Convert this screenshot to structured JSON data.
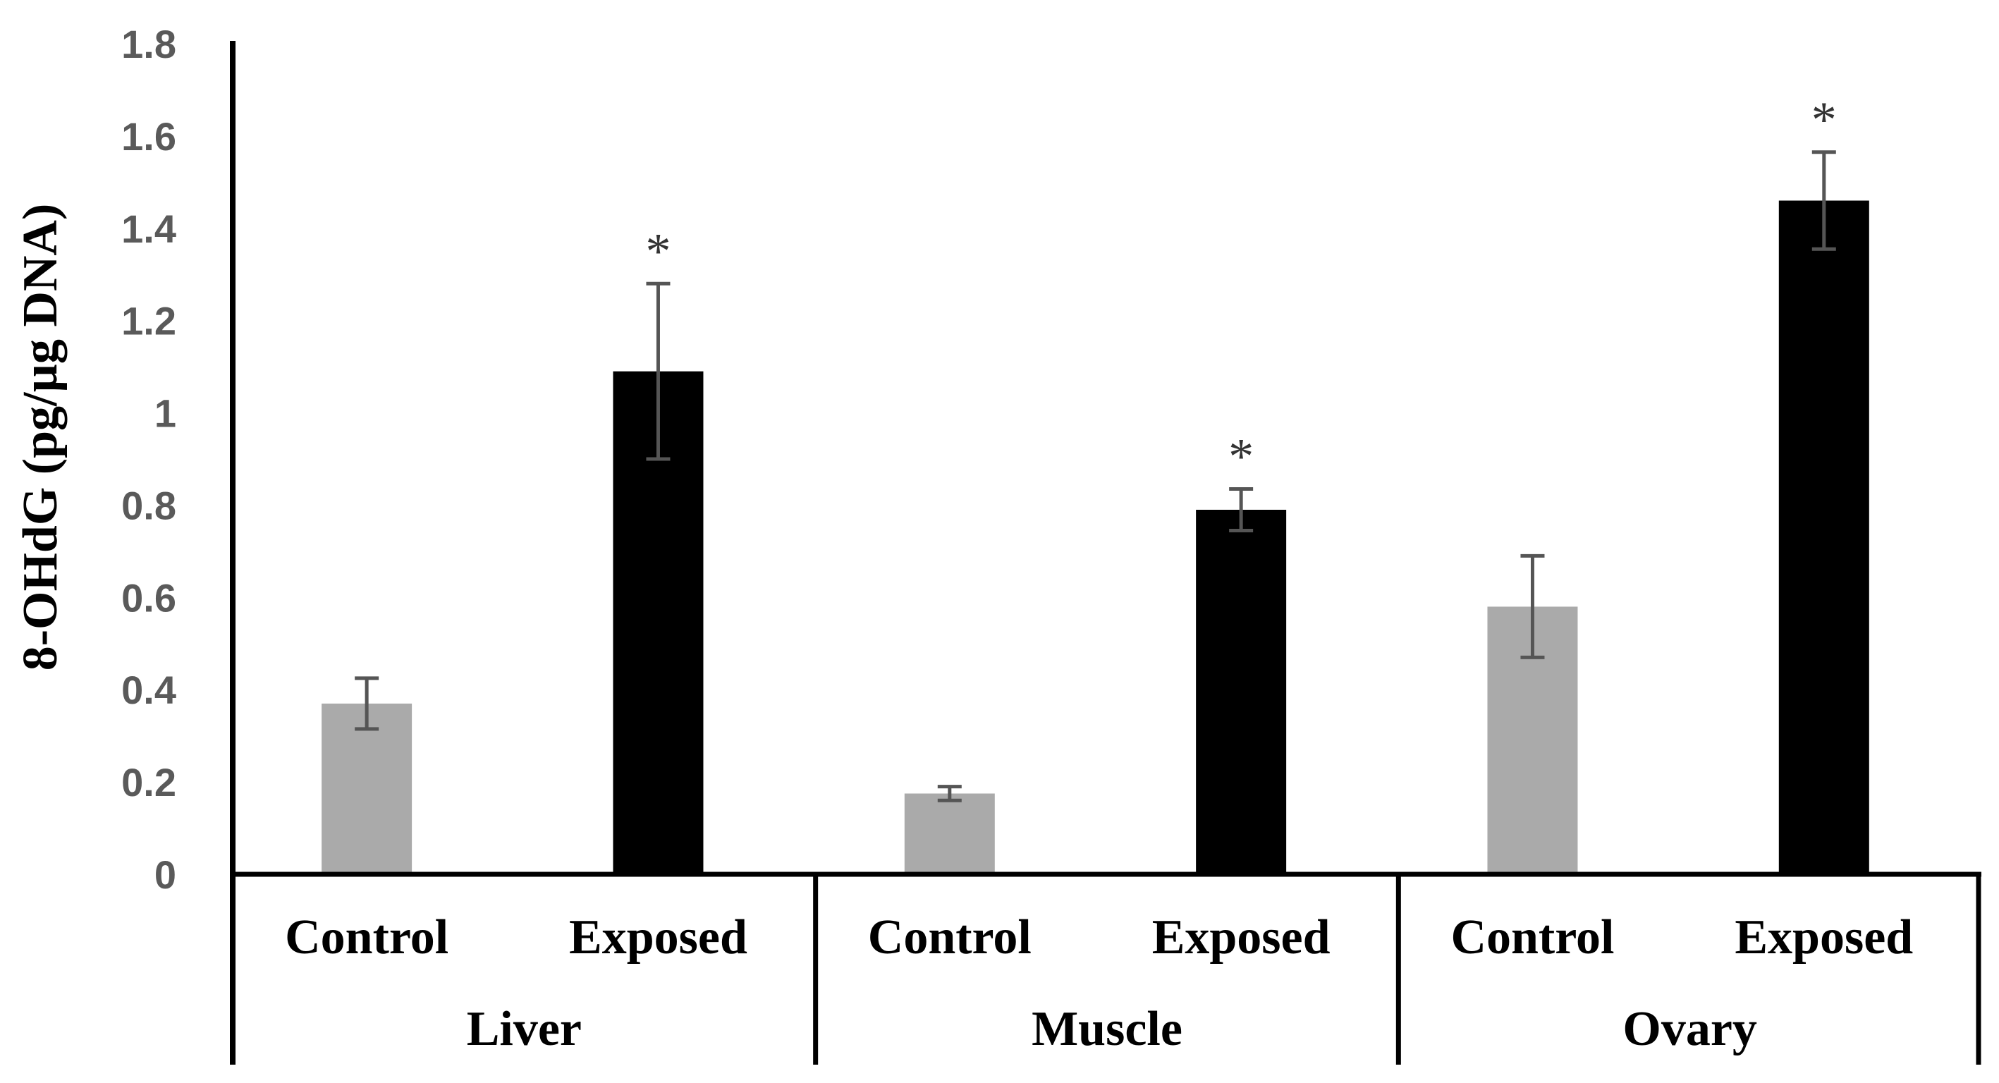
{
  "chart_data": {
    "type": "bar",
    "title": "",
    "ylabel": "8-OHdG (pg/µg DNA)",
    "xlabel": "",
    "ylim": [
      0,
      1.8
    ],
    "yticks": [
      0,
      0.2,
      0.4,
      0.6,
      0.8,
      1,
      1.2,
      1.4,
      1.6,
      1.8
    ],
    "ytick_labels": [
      "0",
      "0.2",
      "0.4",
      "0.6",
      "0.8",
      "1",
      "1.2",
      "1.4",
      "1.6",
      "1.8"
    ],
    "grid": false,
    "groups": [
      {
        "name": "Liver",
        "bars": [
          {
            "label": "Control",
            "value": 0.37,
            "error": 0.055,
            "significant": false
          },
          {
            "label": "Exposed",
            "value": 1.09,
            "error": 0.19,
            "significant": true
          }
        ]
      },
      {
        "name": "Muscle",
        "bars": [
          {
            "label": "Control",
            "value": 0.175,
            "error": 0.015,
            "significant": false
          },
          {
            "label": "Exposed",
            "value": 0.79,
            "error": 0.045,
            "significant": true
          }
        ]
      },
      {
        "name": "Ovary",
        "bars": [
          {
            "label": "Control",
            "value": 0.58,
            "error": 0.11,
            "significant": false
          },
          {
            "label": "Exposed",
            "value": 1.46,
            "error": 0.105,
            "significant": true
          }
        ]
      }
    ],
    "significance_marker": "*",
    "colors": {
      "Control": "#aaaaaa",
      "Exposed": "#000000",
      "error_bar": "#555555",
      "axis": "#000000"
    }
  }
}
